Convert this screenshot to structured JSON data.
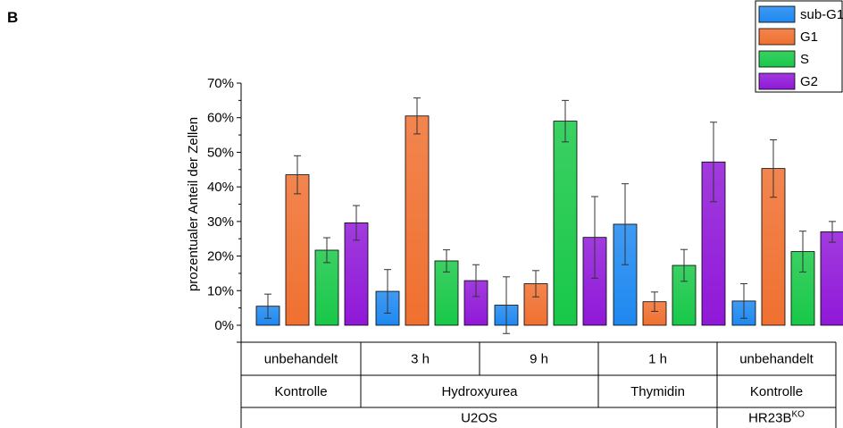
{
  "panel_label": "B",
  "chart_data": {
    "type": "bar",
    "ylabel": "prozentualer Anteil der Zellen",
    "ylim": [
      0,
      70
    ],
    "yticks": [
      "0%",
      "10%",
      "20%",
      "30%",
      "40%",
      "50%",
      "60%",
      "70%"
    ],
    "grid": false,
    "legend_position": "top-right",
    "categories": [
      "unbehandelt",
      "3 h",
      "9 h",
      "1 h",
      "unbehandelt"
    ],
    "series": [
      {
        "name": "sub-G1",
        "color": "#1e88f0",
        "values": [
          5.5,
          9.8,
          5.8,
          29.2,
          7.0
        ],
        "errors": [
          3.5,
          6.3,
          8.2,
          11.7,
          5.0
        ]
      },
      {
        "name": "G1",
        "color": "#f07030",
        "values": [
          43.5,
          60.5,
          12.0,
          6.8,
          45.3
        ],
        "errors": [
          5.5,
          5.2,
          3.8,
          2.8,
          8.3
        ]
      },
      {
        "name": "S",
        "color": "#18c848",
        "values": [
          21.7,
          18.6,
          59.0,
          17.3,
          21.3
        ],
        "errors": [
          3.6,
          3.2,
          6.0,
          4.6,
          5.9
        ]
      },
      {
        "name": "G2",
        "color": "#9018d8",
        "values": [
          29.6,
          12.9,
          25.4,
          47.2,
          27.0
        ],
        "errors": [
          5.0,
          4.6,
          11.8,
          11.5,
          3.0
        ]
      }
    ],
    "table_rows": [
      {
        "cells": [
          {
            "text": "unbehandelt",
            "span": 1
          },
          {
            "text": "3 h",
            "span": 1
          },
          {
            "text": "9 h",
            "span": 1
          },
          {
            "text": "1 h",
            "span": 1
          },
          {
            "text": "unbehandelt",
            "span": 1
          }
        ]
      },
      {
        "cells": [
          {
            "text": "Kontrolle",
            "span": 1
          },
          {
            "text": "Hydroxyurea",
            "span": 2
          },
          {
            "text": "Thymidin",
            "span": 1
          },
          {
            "text": "Kontrolle",
            "span": 1
          }
        ]
      },
      {
        "cells": [
          {
            "text": "U2OS",
            "span": 4
          },
          {
            "text": "HR23B",
            "sup": "KO",
            "span": 1
          }
        ]
      }
    ]
  }
}
